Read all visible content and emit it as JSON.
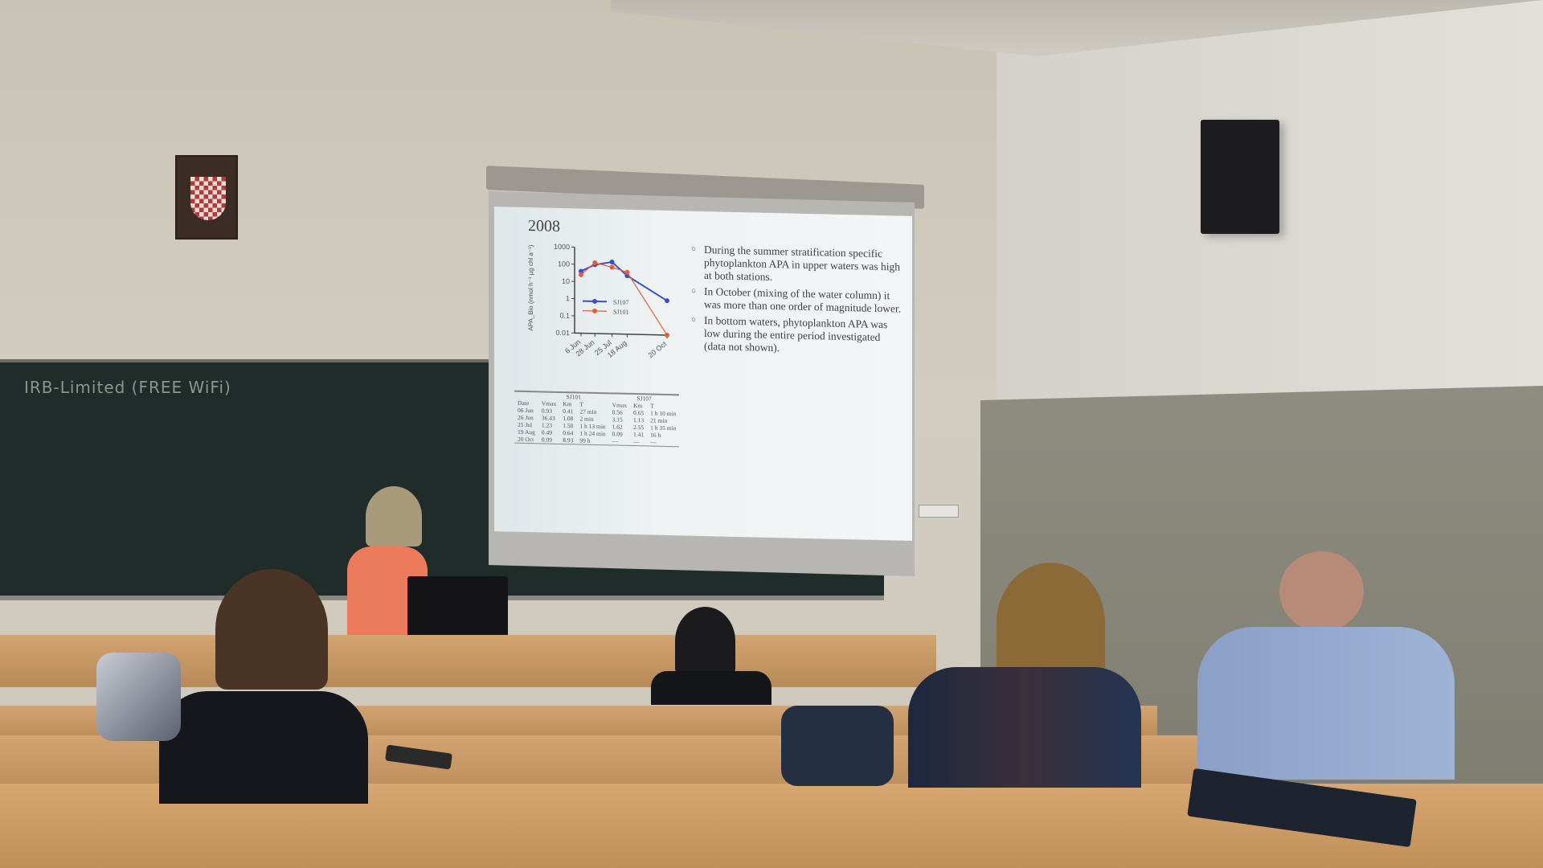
{
  "chalkboard": {
    "text": "IRB-Limited (FREE WiFi)"
  },
  "slide": {
    "year": "2008",
    "bullets": [
      "During the summer stratification specific phytoplankton APA in upper waters was high at both stations.",
      "In October (mixing of the water column) it was more than one order of magnitude lower.",
      "In bottom waters, phytoplankton APA was low during the entire period investigated (data not shown)."
    ],
    "table": {
      "group_headers": [
        "SJ101",
        "SJ107"
      ],
      "headers": [
        "Date",
        "Vmax",
        "Km",
        "T",
        "Vmax",
        "Km",
        "T"
      ],
      "rows": [
        [
          "06 Jun",
          "0.93",
          "0.41",
          "27 min",
          "0.56",
          "0.65",
          "1 h 10 min"
        ],
        [
          "26 Jun",
          "36.43",
          "1.08",
          "2 min",
          "3.15",
          "1.13",
          "21 min"
        ],
        [
          "25 Jul",
          "1.23",
          "1.50",
          "1 h 13 min",
          "1.62",
          "2.55",
          "1 h 35 min"
        ],
        [
          "19 Aug",
          "0.49",
          "0.64",
          "1 h 24 min",
          "0.09",
          "1.41",
          "16 h"
        ],
        [
          "20 Oct",
          "0.09",
          "8.93",
          "99 h",
          "—",
          "—",
          "—"
        ]
      ]
    }
  },
  "chart_data": {
    "type": "line",
    "title": "",
    "ylabel": "APA_Bio (nmol h⁻¹ µg chl a⁻¹)",
    "xlabel": "",
    "yscale": "log",
    "ylim": [
      0.01,
      1000
    ],
    "yticks": [
      "0.01",
      "0.1",
      "1",
      "10",
      "100",
      "1000"
    ],
    "categories": [
      "6 Jun",
      "28 Jun",
      "25 Jul",
      "18 Aug",
      "20 Oct"
    ],
    "x_days": [
      0,
      22,
      49,
      73,
      136
    ],
    "legend": "center-left",
    "series": [
      {
        "name": "SJ107",
        "color": "#3b4fc4",
        "values": [
          40,
          100,
          150,
          25,
          1
        ]
      },
      {
        "name": "SJ101",
        "color": "#e0603a",
        "values": [
          25,
          130,
          75,
          40,
          0.005
        ]
      }
    ]
  }
}
